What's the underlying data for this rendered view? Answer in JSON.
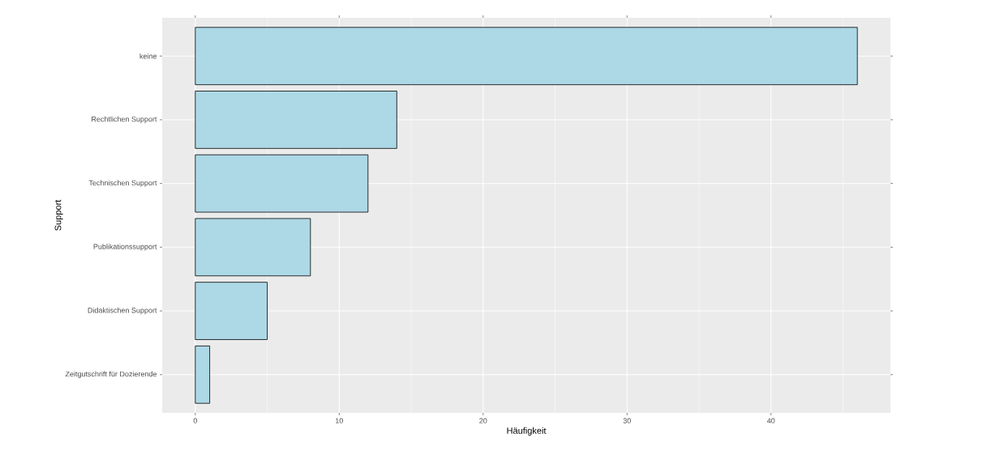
{
  "chart_data": {
    "type": "bar",
    "orientation": "horizontal",
    "xlabel": "Häufigkeit",
    "ylabel": "Support",
    "categories": [
      "keine",
      "Rechtlichen Support",
      "Technischen Support",
      "Publikationssupport",
      "Didaktischen Support",
      "Zeitgutschrift für Dozierende"
    ],
    "values": [
      46,
      14,
      12,
      8,
      5,
      1
    ],
    "color": "#add8e6",
    "xlim": [
      -2.3,
      48.3
    ],
    "xticks": [
      0,
      10,
      20,
      30,
      40
    ],
    "grid": true
  }
}
